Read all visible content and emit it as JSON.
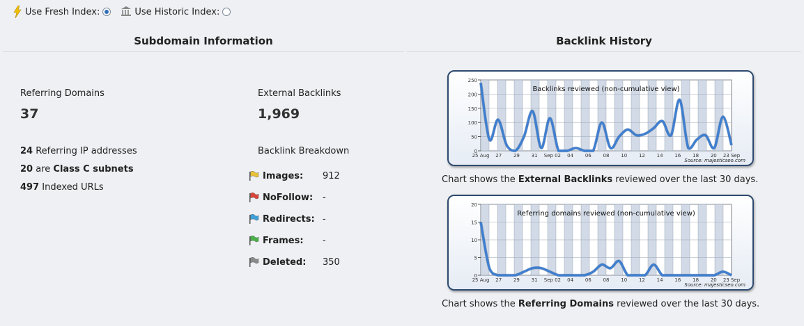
{
  "index_toggle": {
    "fresh_label": "Use Fresh Index:",
    "historic_label": "Use Historic Index:",
    "selected": "fresh"
  },
  "subdomain": {
    "heading": "Subdomain Information",
    "referring_domains_label": "Referring Domains",
    "referring_domains_value": "37",
    "external_backlinks_label": "External Backlinks",
    "external_backlinks_value": "1,969",
    "referring_ips_count": "24",
    "referring_ips_text": "Referring IP addresses",
    "class_c_count": "20",
    "class_c_text_pre": "are",
    "class_c_text_bold": "Class C subnets",
    "indexed_urls_count": "497",
    "indexed_urls_text": "Indexed URLs",
    "breakdown_label": "Backlink Breakdown",
    "breakdown": [
      {
        "name": "Images:",
        "value": "912",
        "flag_color": "#e8c23a"
      },
      {
        "name": "NoFollow:",
        "value": "-",
        "flag_color": "#d9463a"
      },
      {
        "name": "Redirects:",
        "value": "-",
        "flag_color": "#3fa0d8"
      },
      {
        "name": "Frames:",
        "value": "-",
        "flag_color": "#4bb04a"
      },
      {
        "name": "Deleted:",
        "value": "350",
        "flag_color": "#8a8a8a"
      }
    ]
  },
  "history": {
    "heading": "Backlink History",
    "caption1_pre": "Chart shows the",
    "caption1_bold": "External Backlinks",
    "caption1_post": "reviewed over the last 30 days.",
    "caption2_pre": "Chart shows the",
    "caption2_bold": "Referring Domains",
    "caption2_post": "reviewed over the last 30 days."
  },
  "chart_data": [
    {
      "type": "line",
      "title": "Backlinks reviewed (non-cumulative view)",
      "source": "Source: majesticseo.com",
      "ylim": [
        0,
        250
      ],
      "yticks": [
        0,
        50,
        100,
        150,
        200,
        250
      ],
      "xtick_labels": [
        "25 Aug",
        "27",
        "29",
        "31",
        "Sep 02",
        "04",
        "06",
        "08",
        "10",
        "12",
        "14",
        "16",
        "18",
        "20",
        "23 Sep"
      ],
      "x": [
        0,
        1,
        2,
        3,
        4,
        5,
        6,
        7,
        8,
        9,
        10,
        11,
        12,
        13,
        14,
        15,
        16,
        17,
        18,
        19,
        20,
        21,
        22,
        23,
        24,
        25,
        26,
        27,
        28,
        29
      ],
      "values": [
        240,
        40,
        110,
        20,
        0,
        50,
        140,
        10,
        115,
        0,
        0,
        10,
        0,
        0,
        100,
        10,
        50,
        75,
        55,
        60,
        80,
        105,
        55,
        180,
        10,
        40,
        55,
        10,
        120,
        20
      ],
      "grid": true,
      "color": "#3f7fd0"
    },
    {
      "type": "line",
      "title": "Referring domains reviewed (non-cumulative view)",
      "source": "Source: majesticseo.com",
      "ylim": [
        0,
        20
      ],
      "yticks": [
        0,
        5,
        10,
        15,
        20
      ],
      "xtick_labels": [
        "25 Aug",
        "27",
        "29",
        "31",
        "Sep 02",
        "04",
        "06",
        "08",
        "10",
        "12",
        "14",
        "16",
        "18",
        "20",
        "23 Sep"
      ],
      "x": [
        0,
        1,
        2,
        3,
        4,
        5,
        6,
        7,
        8,
        9,
        10,
        11,
        12,
        13,
        14,
        15,
        16,
        17,
        18,
        19,
        20,
        21,
        22,
        23,
        24,
        25,
        26,
        27,
        28,
        29
      ],
      "values": [
        15,
        2,
        0,
        0,
        0,
        1,
        2,
        2,
        1,
        0,
        0,
        0,
        0,
        1,
        3,
        2,
        4,
        0,
        0,
        0,
        3,
        0,
        0,
        0,
        0,
        0,
        0,
        0,
        1,
        0
      ],
      "grid": true,
      "color": "#3f7fd0"
    }
  ]
}
